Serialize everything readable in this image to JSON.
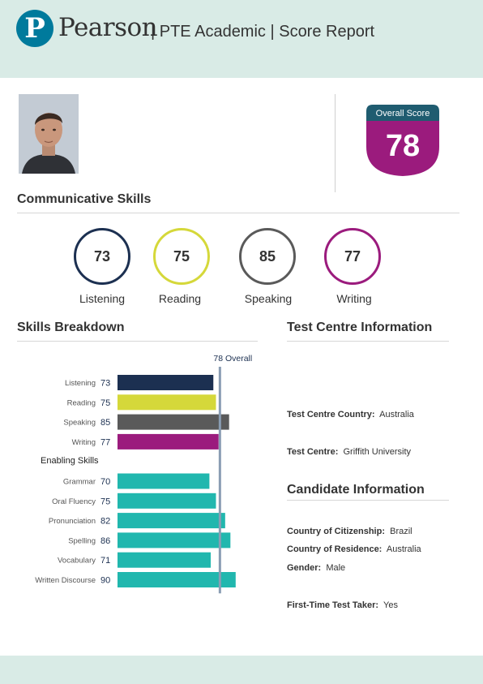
{
  "header": {
    "brand": "Pearson",
    "title": "| PTE Academic | Score Report",
    "logo_icon": "pearson-p-logo-icon"
  },
  "overall": {
    "label": "Overall Score",
    "value": "78",
    "label_bg": "#1f5c70",
    "score_bg": "#9b1b7d"
  },
  "communicative": {
    "title": "Communicative Skills",
    "skills": [
      {
        "label": "Listening",
        "score": "73",
        "color": "#1c3051"
      },
      {
        "label": "Reading",
        "score": "75",
        "color": "#d5d83a"
      },
      {
        "label": "Speaking",
        "score": "85",
        "color": "#5a5a5a"
      },
      {
        "label": "Writing",
        "score": "77",
        "color": "#9b1b7d"
      }
    ]
  },
  "breakdown": {
    "title": "Skills Breakdown",
    "overall_label": "78 Overall",
    "enabling_label": "Enabling Skills"
  },
  "chart_data": {
    "type": "bar",
    "orientation": "horizontal",
    "overall_marker": 78,
    "xlim": [
      0,
      90
    ],
    "groups": [
      {
        "name": "",
        "categories": [
          "Listening",
          "Reading",
          "Speaking",
          "Writing"
        ],
        "values": [
          73,
          75,
          85,
          77
        ],
        "colors": [
          "#1c3051",
          "#d5d83a",
          "#5a5a5a",
          "#9b1b7d"
        ]
      },
      {
        "name": "Enabling Skills",
        "categories": [
          "Grammar",
          "Oral Fluency",
          "Pronunciation",
          "Spelling",
          "Vocabulary",
          "Written Discourse"
        ],
        "values": [
          70,
          75,
          82,
          86,
          71,
          90
        ],
        "colors": [
          "#21b7ae",
          "#21b7ae",
          "#21b7ae",
          "#21b7ae",
          "#21b7ae",
          "#21b7ae"
        ]
      }
    ],
    "marker_color": "#8a9db3"
  },
  "test_centre": {
    "title": "Test Centre Information",
    "country_label": "Test Centre Country:",
    "country": "Australia",
    "centre_label": "Test Centre:",
    "centre": "Griffith University"
  },
  "candidate": {
    "title": "Candidate Information",
    "citizenship_label": "Country of Citizenship:",
    "citizenship": "Brazil",
    "residence_label": "Country of Residence:",
    "residence": "Australia",
    "gender_label": "Gender:",
    "gender": "Male",
    "first_time_label": "First-Time Test Taker:",
    "first_time": "Yes"
  }
}
